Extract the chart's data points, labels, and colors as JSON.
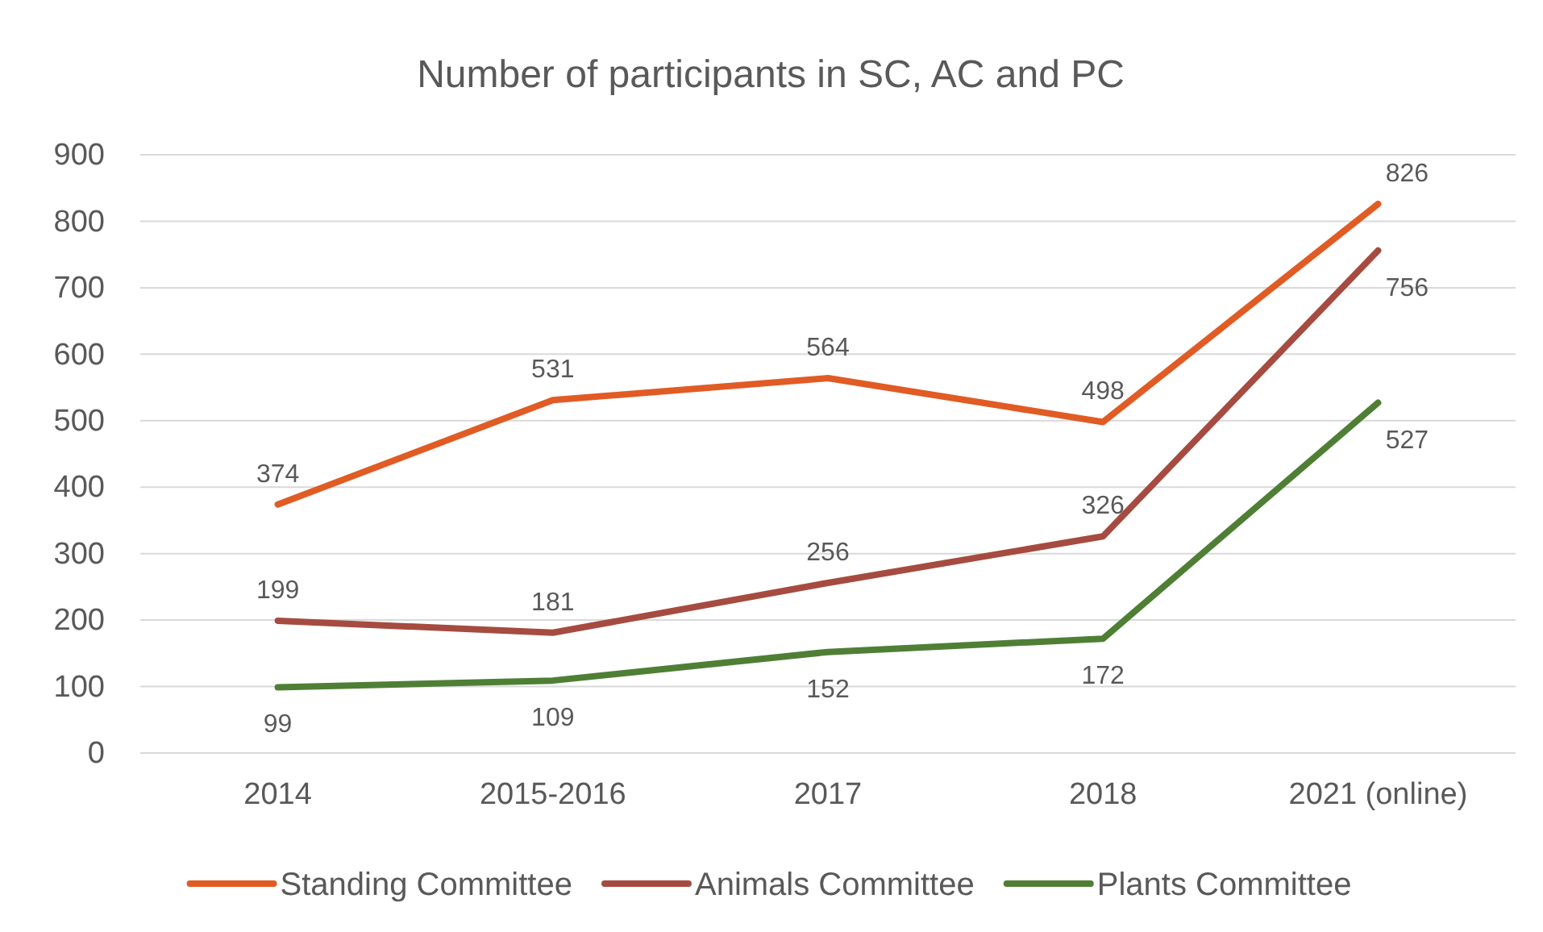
{
  "chart_data": {
    "type": "line",
    "title": "Number of participants in SC, AC and PC",
    "categories": [
      "2014",
      "2015-2016",
      "2017",
      "2018",
      "2021 (online)"
    ],
    "series": [
      {
        "name": "Standing Committee",
        "color": "#e15b24",
        "values": [
          374,
          531,
          564,
          498,
          826
        ]
      },
      {
        "name": "Animals Committee",
        "color": "#a64b40",
        "values": [
          199,
          181,
          256,
          326,
          756
        ]
      },
      {
        "name": "Plants Committee",
        "color": "#4f7f35",
        "values": [
          99,
          109,
          152,
          172,
          527
        ]
      }
    ],
    "ylim": [
      0,
      900
    ],
    "yticks": [
      0,
      100,
      200,
      300,
      400,
      500,
      600,
      700,
      800,
      900
    ],
    "grid": "y",
    "legend": "bottom",
    "data_labels": true,
    "marker": "none",
    "line_style": "solid"
  }
}
